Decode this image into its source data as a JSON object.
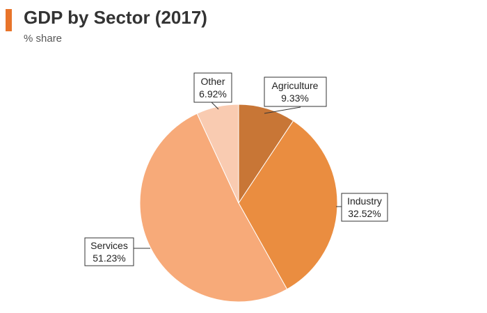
{
  "header": {
    "title": "GDP by Sector (2017)",
    "subtitle": "% share",
    "accent_color": "#e8742a"
  },
  "chart_data": {
    "type": "pie",
    "title": "GDP by Sector (2017)",
    "subtitle": "% share",
    "slices": [
      {
        "label": "Agriculture",
        "value": 9.33,
        "display": "9.33%",
        "color": "#c87636"
      },
      {
        "label": "Industry",
        "value": 32.52,
        "display": "32.52%",
        "color": "#ea8d40"
      },
      {
        "label": "Services",
        "value": 51.23,
        "display": "51.23%",
        "color": "#f7aa79"
      },
      {
        "label": "Other",
        "value": 6.92,
        "display": "6.92%",
        "color": "#f9cbb1"
      }
    ],
    "start": "12 o'clock",
    "direction": "clockwise",
    "data_labels": "boxed callouts with leader lines"
  }
}
